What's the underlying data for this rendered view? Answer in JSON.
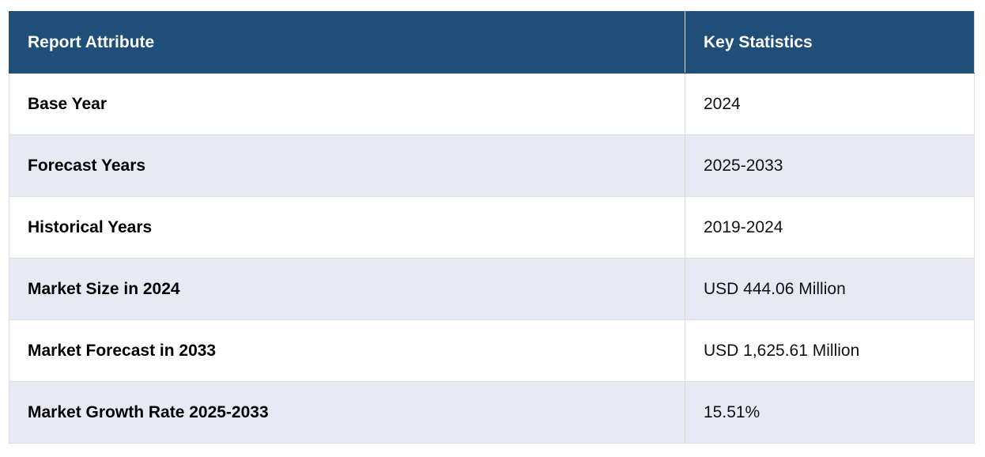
{
  "table": {
    "header": [
      "Report Attribute",
      "Key Statistics"
    ],
    "rows": [
      [
        "Base Year",
        "2024"
      ],
      [
        "Forecast Years",
        "2025-2033"
      ],
      [
        "Historical Years",
        "2019-2024"
      ],
      [
        "Market Size in 2024",
        "USD 444.06 Million"
      ],
      [
        "Market Forecast in 2033",
        "USD 1,625.61 Million"
      ],
      [
        "Market Growth Rate 2025-2033",
        "15.51%"
      ]
    ]
  }
}
